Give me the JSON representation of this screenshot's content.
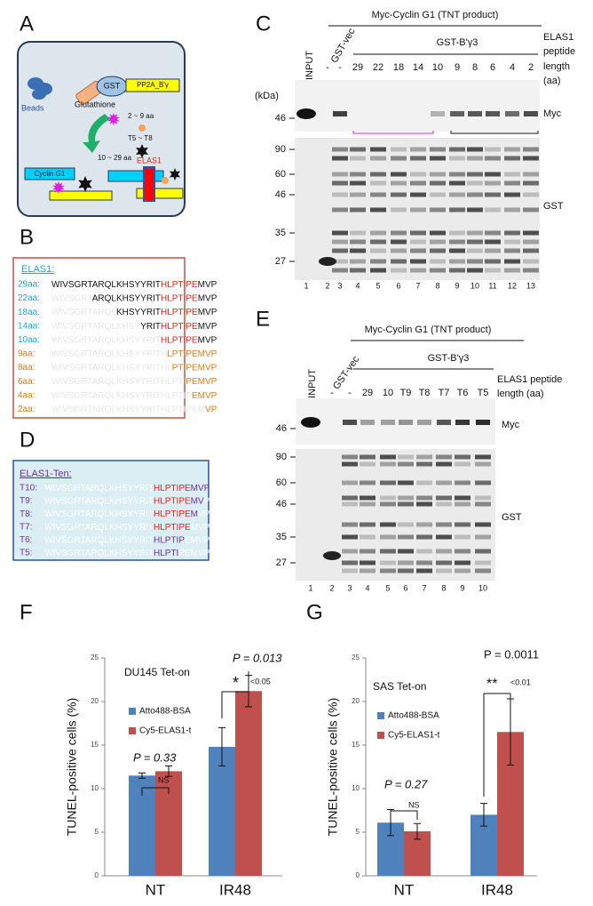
{
  "panels": {
    "A": {
      "label": "A",
      "gst": "GST",
      "protein": "PP2A_B'γ",
      "beads": "Beads",
      "glutathione": "Glutathione",
      "short_range": "2 ~ 9 aa",
      "ten_range": "T5 ~ T8",
      "long_range": "10 ~ 29 aa",
      "elas1": "ELAS1",
      "cyclin": "Cyclin G1"
    },
    "B": {
      "label": "B",
      "title": "ELAS1:",
      "rows": [
        {
          "label": "29aa:",
          "color": "#1aa7d6",
          "segments": [
            {
              "text": "WIVSGRTARQLKHSYYRIT",
              "color": "#111111"
            },
            {
              "text": "HLPTIPE",
              "color": "#e8201a"
            },
            {
              "text": "MVP",
              "color": "#111111"
            }
          ]
        },
        {
          "label": "22aa:",
          "color": "#1aa7d6",
          "segments": [
            {
              "text": "WIVSGRT",
              "color": "#e6e6e6"
            },
            {
              "text": "ARQLKHSYYRIT",
              "color": "#111111"
            },
            {
              "text": "HLPTIPE",
              "color": "#e8201a"
            },
            {
              "text": "MVP",
              "color": "#111111"
            }
          ]
        },
        {
          "label": "18aa:",
          "color": "#1aa7d6",
          "segments": [
            {
              "text": "WIVSGRTARQL",
              "color": "#e6e6e6"
            },
            {
              "text": "KHSYYRIT",
              "color": "#111111"
            },
            {
              "text": "HLPTIPE",
              "color": "#e8201a"
            },
            {
              "text": "MVP",
              "color": "#111111"
            }
          ]
        },
        {
          "label": "14aa:",
          "color": "#1aa7d6",
          "segments": [
            {
              "text": "WIVSGRTARQLKHSY",
              "color": "#e6e6e6"
            },
            {
              "text": "YRIT",
              "color": "#111111"
            },
            {
              "text": "HLPTIPE",
              "color": "#e8201a"
            },
            {
              "text": "MVP",
              "color": "#111111"
            }
          ]
        },
        {
          "label": "10aa:",
          "color": "#1aa7d6",
          "segments": [
            {
              "text": "WIVSGRTARQLKHSYYRIT",
              "color": "#e6e6e6"
            },
            {
              "text": "HLPTIPE",
              "color": "#e8201a"
            },
            {
              "text": "MVP",
              "color": "#111111"
            }
          ]
        },
        {
          "label": "9aa:",
          "color": "#e07b1a",
          "segments": [
            {
              "text": "WIVSGRTARQLKHSYYRITH",
              "color": "#e6e6e6"
            },
            {
              "text": "LPTIPEMVP",
              "color": "#e07b1a"
            }
          ]
        },
        {
          "label": "8aa:",
          "color": "#e07b1a",
          "segments": [
            {
              "text": "WIVSGRTARQLKHSYYRITHL",
              "color": "#e6e6e6"
            },
            {
              "text": "PTIPEMVP",
              "color": "#e07b1a"
            }
          ]
        },
        {
          "label": "6aa:",
          "color": "#e07b1a",
          "segments": [
            {
              "text": "WIVSGRTARQLKHSYYRITHLPT",
              "color": "#e6e6e6"
            },
            {
              "text": "IPEMVP",
              "color": "#e07b1a"
            }
          ]
        },
        {
          "label": "4aa:",
          "color": "#e07b1a",
          "segments": [
            {
              "text": "WIVSGRTARQLKHSYYRITHLPTIP",
              "color": "#e6e6e6"
            },
            {
              "text": "EMVP",
              "color": "#e07b1a"
            }
          ]
        },
        {
          "label": "2aa:",
          "color": "#e07b1a",
          "segments": [
            {
              "text": "WIVSGRTARQLKHSYYRITHLPTIPEM",
              "color": "#e6e6e6"
            },
            {
              "text": "VP",
              "color": "#e07b1a"
            }
          ]
        }
      ]
    },
    "C": {
      "label": "C",
      "title": "Myc-Cyclin G1 (TNT product)",
      "input": "INPUT",
      "vector": "GST-vec",
      "bait": "GST-B'γ3",
      "peptide_label": [
        "ELAS1",
        "peptide",
        "length",
        "(aa)"
      ],
      "lanes": [
        "-",
        "-",
        "29",
        "22",
        "18",
        "14",
        "10",
        "9",
        "8",
        "6",
        "4",
        "2"
      ],
      "kda": "(kDa)",
      "myc_markers": [
        "46"
      ],
      "myc": "Myc",
      "gst_markers": [
        "90",
        "60",
        "46",
        "35",
        "27"
      ],
      "gst": "GST",
      "lane_numbers": [
        "1",
        "2",
        "3",
        "4",
        "5",
        "6",
        "7",
        "8",
        "9",
        "10",
        "11",
        "12",
        "13"
      ]
    },
    "D": {
      "label": "D",
      "title": "ELAS1-Ten:",
      "rows": [
        {
          "label": "T10:",
          "color": "#7030a0",
          "segments": [
            {
              "text": "WIVSGRTARQLKHSYYRIT",
              "color": "#ffffff"
            },
            {
              "text": "HLPTIPE",
              "color": "#e8201a"
            },
            {
              "text": "MVP",
              "color": "#7030a0"
            }
          ]
        },
        {
          "label": "T9:",
          "color": "#7030a0",
          "segments": [
            {
              "text": "WIVSGRTARQLKHSYYRIT",
              "color": "#ffffff"
            },
            {
              "text": "HLPTIPE",
              "color": "#e8201a"
            },
            {
              "text": "MV",
              "color": "#7030a0"
            },
            {
              "text": "P",
              "color": "#ffffff"
            }
          ]
        },
        {
          "label": "T8:",
          "color": "#7030a0",
          "segments": [
            {
              "text": "WIVSGRTARQLKHSYYRIT",
              "color": "#ffffff"
            },
            {
              "text": "HLPTIPE",
              "color": "#e8201a"
            },
            {
              "text": "M",
              "color": "#7030a0"
            },
            {
              "text": "VP",
              "color": "#ffffff"
            }
          ]
        },
        {
          "label": "T7:",
          "color": "#7030a0",
          "segments": [
            {
              "text": "WIVSGRTARQLKHSYYRIT",
              "color": "#ffffff"
            },
            {
              "text": "HLPTIPE",
              "color": "#e8201a"
            },
            {
              "text": "MVP",
              "color": "#ffffff"
            }
          ]
        },
        {
          "label": "T6:",
          "color": "#7030a0",
          "segments": [
            {
              "text": "WIVSGRTARQLKHSYYRIT",
              "color": "#ffffff"
            },
            {
              "text": "HLPTIP",
              "color": "#7030a0"
            },
            {
              "text": "EMVP",
              "color": "#ffffff"
            }
          ]
        },
        {
          "label": "T5:",
          "color": "#7030a0",
          "segments": [
            {
              "text": "WIVSGRTARQLKHSYYRIT",
              "color": "#ffffff"
            },
            {
              "text": "HLPTI",
              "color": "#7030a0"
            },
            {
              "text": "PEMVP",
              "color": "#ffffff"
            }
          ]
        }
      ]
    },
    "E": {
      "label": "E",
      "title": "Myc-Cyclin G1 (TNT product)",
      "input": "INPUT",
      "vector": "GST-vec",
      "bait": "GST-B'γ3",
      "peptide_label": [
        "ELAS1 peptide",
        "length (aa)"
      ],
      "lanes": [
        "-",
        "-",
        "29",
        "10",
        "T9",
        "T8",
        "T7",
        "T6",
        "T5"
      ],
      "myc_markers": [
        "46"
      ],
      "myc": "Myc",
      "gst_markers": [
        "90",
        "60",
        "46",
        "35",
        "27"
      ],
      "gst": "GST",
      "lane_numbers": [
        "1",
        "2",
        "3",
        "4",
        "5",
        "6",
        "7",
        "8",
        "9",
        "10"
      ]
    }
  },
  "chart_data": [
    {
      "type": "bar",
      "label": "F",
      "title": "DU145 Tet-on",
      "y_label": "TUNEL-positive cells (%)",
      "categories": [
        "NT",
        "IR48"
      ],
      "series": [
        {
          "name": "Atto488-BSA",
          "color": "#4f81bd",
          "values": [
            11.5,
            14.8
          ],
          "errors": [
            0.3,
            2.2
          ]
        },
        {
          "name": "Cy5-ELAS1-t",
          "color": "#c0504d",
          "values": [
            12.0,
            21.2
          ],
          "errors": [
            0.6,
            1.8
          ]
        }
      ],
      "ylim": [
        0,
        25
      ],
      "yticks": [
        0,
        5,
        10,
        15,
        20,
        25
      ],
      "annotations": [
        "P = 0.33",
        "NS",
        "P = 0.013",
        "*",
        "<0.05"
      ]
    },
    {
      "type": "bar",
      "label": "G",
      "title": "SAS Tet-on",
      "y_label": "TUNEL-positive cells (%)",
      "categories": [
        "NT",
        "IR48"
      ],
      "series": [
        {
          "name": "Atto488-BSA",
          "color": "#4f81bd",
          "values": [
            6.1,
            7.0
          ],
          "errors": [
            1.5,
            1.3
          ]
        },
        {
          "name": "Cy5-ELAS1-t",
          "color": "#c0504d",
          "values": [
            5.1,
            16.5
          ],
          "errors": [
            0.9,
            3.8
          ]
        }
      ],
      "ylim": [
        0,
        25
      ],
      "yticks": [
        0,
        5,
        10,
        15,
        20,
        25
      ],
      "annotations": [
        "P = 0.27",
        "NS",
        "P = 0.0011",
        "**",
        "<0.01"
      ]
    }
  ]
}
